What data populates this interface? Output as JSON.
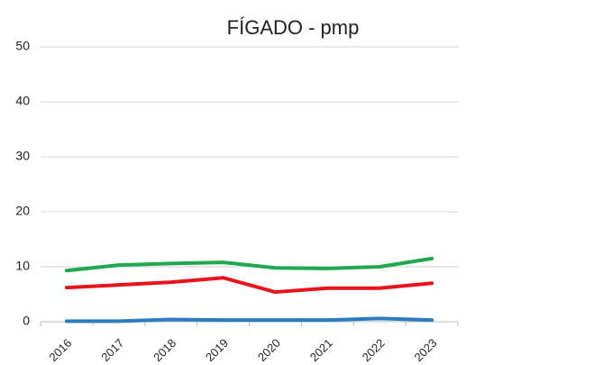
{
  "chart_data": {
    "type": "line",
    "title": "FÍGADO - pmp",
    "categories": [
      "2016",
      "2017",
      "2018",
      "2019",
      "2020",
      "2021",
      "2022",
      "2023"
    ],
    "series": [
      {
        "color": "#1fa84f",
        "values": [
          9.3,
          10.3,
          10.6,
          10.8,
          9.8,
          9.7,
          10.0,
          11.5
        ]
      },
      {
        "color": "#e8141b",
        "values": [
          6.2,
          6.7,
          7.2,
          8.0,
          5.4,
          6.1,
          6.1,
          7.0
        ]
      },
      {
        "color": "#2a7bbf",
        "values": [
          0.1,
          0.1,
          0.4,
          0.3,
          0.3,
          0.3,
          0.6,
          0.3
        ]
      }
    ],
    "ylim": [
      0,
      50
    ],
    "yticks": [
      0,
      10,
      20,
      30,
      40,
      50
    ],
    "grid": true
  }
}
